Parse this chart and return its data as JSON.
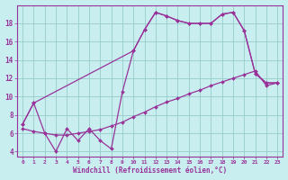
{
  "xlabel": "Windchill (Refroidissement éolien,°C)",
  "bg_color": "#c8eef0",
  "line_color": "#993399",
  "grid_color": "#99cccc",
  "xlim": [
    -0.5,
    23.5
  ],
  "ylim": [
    3.5,
    20.0
  ],
  "yticks": [
    4,
    6,
    8,
    10,
    12,
    14,
    16,
    18
  ],
  "xticks": [
    0,
    1,
    2,
    3,
    4,
    5,
    6,
    7,
    8,
    9,
    10,
    11,
    12,
    13,
    14,
    15,
    16,
    17,
    18,
    19,
    20,
    21,
    22,
    23
  ],
  "series": [
    {
      "x": [
        0,
        1,
        2,
        3,
        4,
        5,
        6,
        7,
        8,
        9,
        10,
        11,
        12,
        13,
        14,
        15,
        16,
        17,
        18,
        19,
        20,
        21,
        22,
        23
      ],
      "y": [
        7.0,
        9.3,
        6.0,
        4.0,
        6.5,
        5.2,
        6.5,
        5.2,
        4.3,
        10.5,
        15.0,
        17.3,
        19.2,
        18.8,
        18.3,
        18.0,
        18.0,
        18.0,
        19.0,
        19.2,
        17.2,
        12.5,
        11.5,
        11.5
      ]
    },
    {
      "x": [
        0,
        1,
        2,
        3,
        4,
        5,
        6,
        7,
        8,
        9,
        10,
        11,
        12,
        13,
        14,
        15,
        16,
        17,
        18,
        19,
        20,
        21,
        22,
        23
      ],
      "y": [
        6.5,
        6.2,
        6.0,
        5.8,
        5.8,
        6.0,
        6.2,
        6.4,
        6.8,
        7.2,
        7.8,
        8.3,
        8.9,
        9.4,
        9.8,
        10.3,
        10.7,
        11.2,
        11.6,
        12.0,
        12.4,
        12.8,
        11.2,
        11.5
      ]
    },
    {
      "x": [
        0,
        1,
        10,
        11,
        12,
        13,
        14,
        15,
        16,
        17,
        18,
        19,
        20,
        21,
        22,
        23
      ],
      "y": [
        7.0,
        9.3,
        15.0,
        17.3,
        19.2,
        18.8,
        18.3,
        18.0,
        18.0,
        18.0,
        19.0,
        19.2,
        17.2,
        12.5,
        11.5,
        11.5
      ]
    }
  ]
}
